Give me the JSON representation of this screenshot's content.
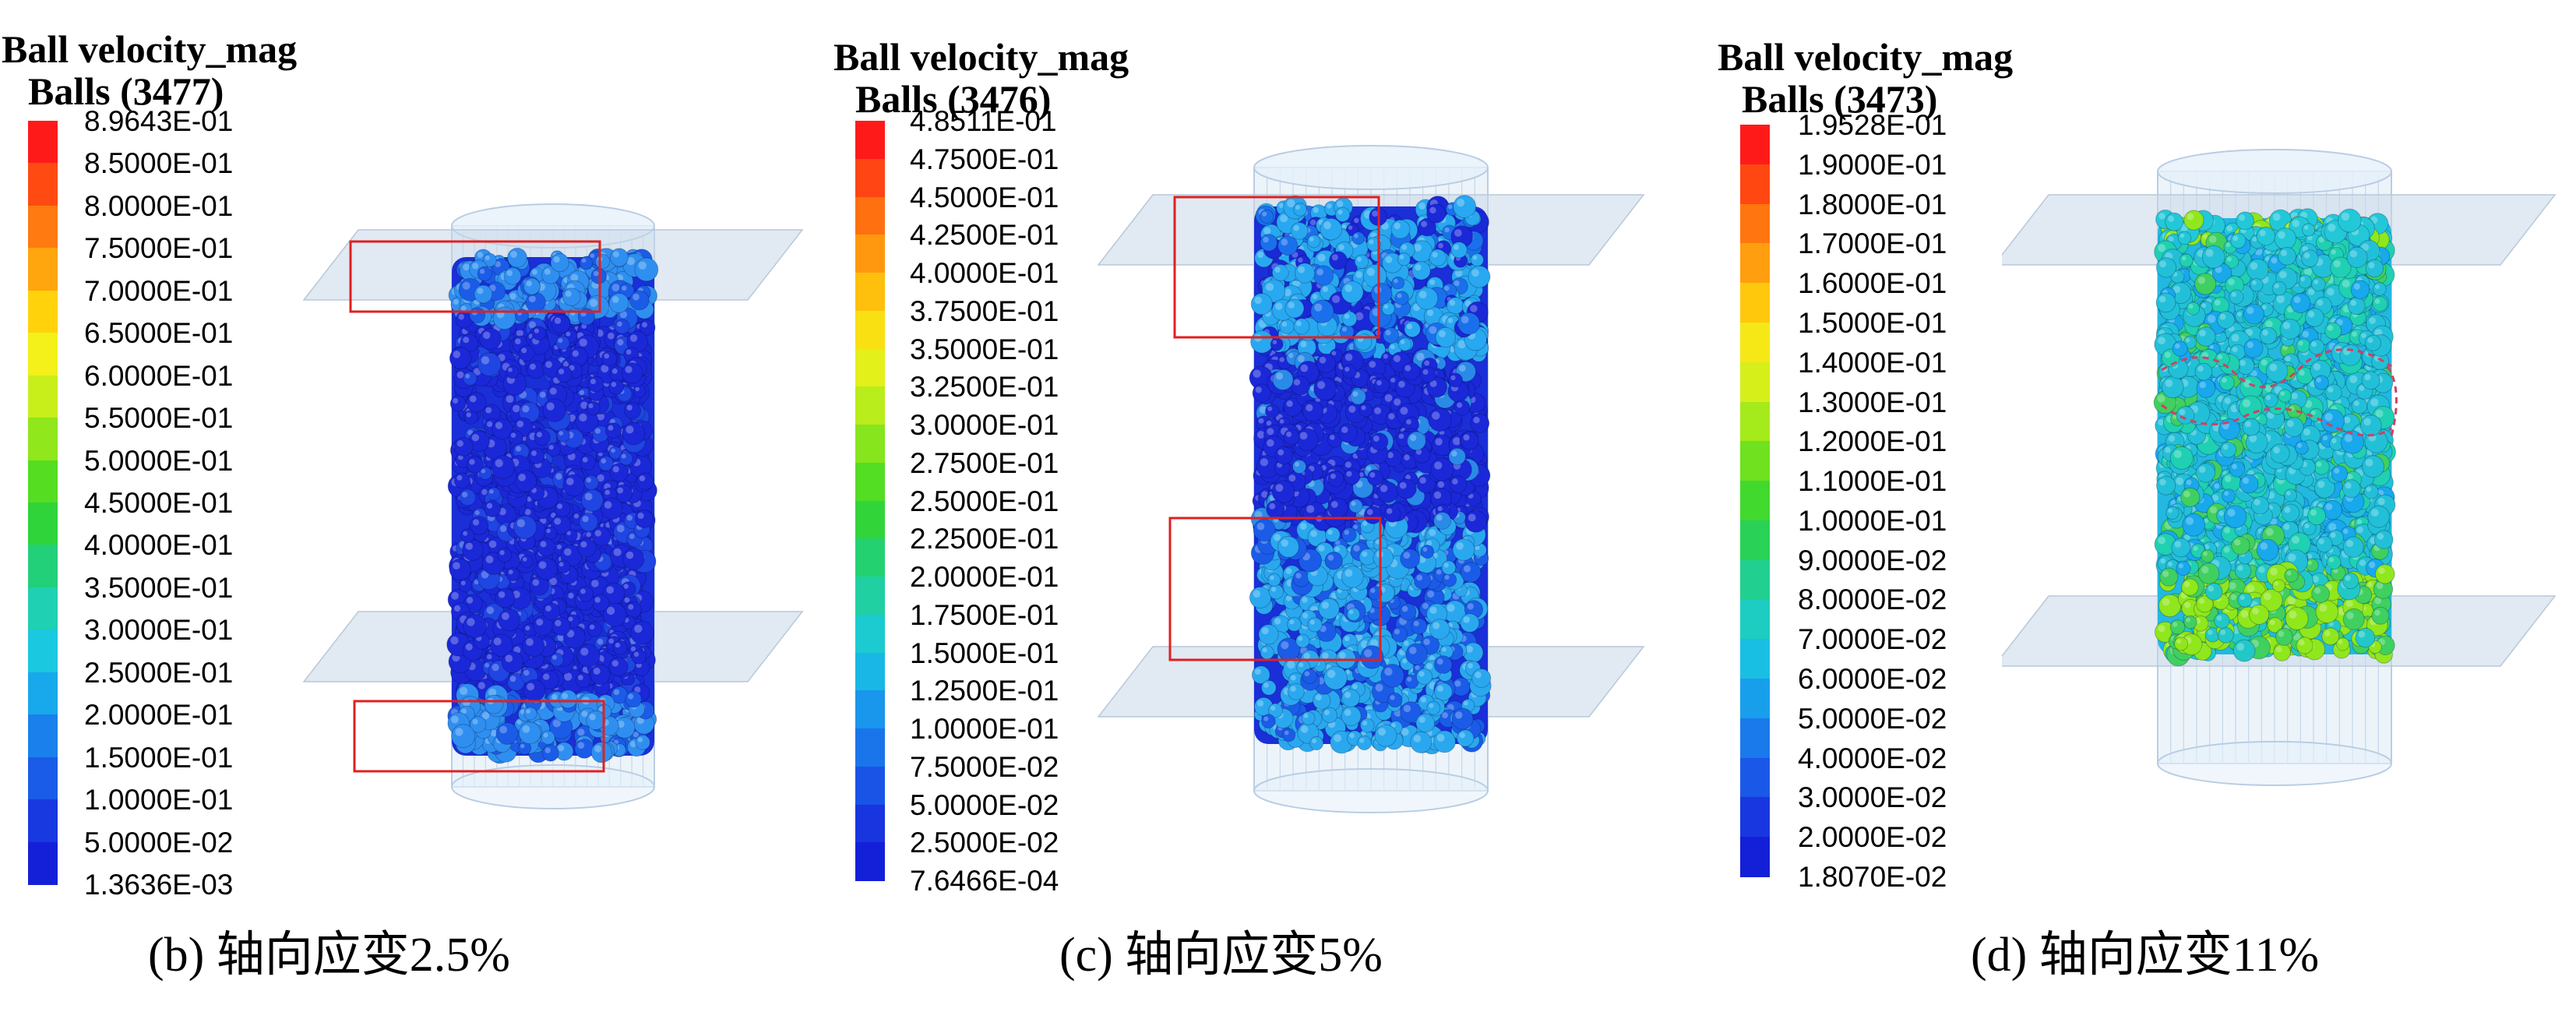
{
  "panels": [
    {
      "id": "b",
      "legend_title": "Ball velocity_mag",
      "legend_subtitle": "Balls (3477)",
      "tick_labels": [
        "8.9643E-01",
        "8.5000E-01",
        "8.0000E-01",
        "7.5000E-01",
        "7.0000E-01",
        "6.5000E-01",
        "6.0000E-01",
        "5.5000E-01",
        "5.0000E-01",
        "4.5000E-01",
        "4.0000E-01",
        "3.5000E-01",
        "3.0000E-01",
        "2.5000E-01",
        "2.0000E-01",
        "1.5000E-01",
        "1.0000E-01",
        "5.0000E-02",
        "1.3636E-03"
      ],
      "caption": "(b) 轴向应变2.5%",
      "highlight_regions": [
        "top-end",
        "bottom-end"
      ]
    },
    {
      "id": "c",
      "legend_title": "Ball velocity_mag",
      "legend_subtitle": "Balls (3476)",
      "tick_labels": [
        "4.8511E-01",
        "4.7500E-01",
        "4.5000E-01",
        "4.2500E-01",
        "4.0000E-01",
        "3.7500E-01",
        "3.5000E-01",
        "3.2500E-01",
        "3.0000E-01",
        "2.7500E-01",
        "2.5000E-01",
        "2.2500E-01",
        "2.0000E-01",
        "1.7500E-01",
        "1.5000E-01",
        "1.2500E-01",
        "1.0000E-01",
        "7.5000E-02",
        "5.0000E-02",
        "2.5000E-02",
        "7.6466E-04"
      ],
      "caption": "(c) 轴向应变5%",
      "highlight_regions": [
        "upper-third",
        "lower-third"
      ]
    },
    {
      "id": "d",
      "legend_title": "Ball velocity_mag",
      "legend_subtitle": "Balls (3473)",
      "tick_labels": [
        "1.9528E-01",
        "1.9000E-01",
        "1.8000E-01",
        "1.7000E-01",
        "1.6000E-01",
        "1.5000E-01",
        "1.4000E-01",
        "1.3000E-01",
        "1.2000E-01",
        "1.1000E-01",
        "1.0000E-01",
        "9.0000E-02",
        "8.0000E-02",
        "7.0000E-02",
        "6.0000E-02",
        "5.0000E-02",
        "4.0000E-02",
        "3.0000E-02",
        "2.0000E-02",
        "1.8070E-02"
      ],
      "caption": "(d) 轴向应变11%",
      "highlight_regions": []
    }
  ],
  "colors": {
    "colorbar_top_to_bottom": [
      "#ff1a1a",
      "#ff4a12",
      "#ff7a10",
      "#ffa50e",
      "#ffd20c",
      "#f3f01a",
      "#c8ef1a",
      "#8fe71c",
      "#55dd22",
      "#2fd43a",
      "#22d07a",
      "#1fd0b2",
      "#1ac8e0",
      "#18a8ec",
      "#1a80ec",
      "#1a5ce8",
      "#1838e0",
      "#1420d8"
    ],
    "highlight_box": "#e02020",
    "cylinder": "#d5e6f5",
    "plate": "#c9d7e8"
  }
}
